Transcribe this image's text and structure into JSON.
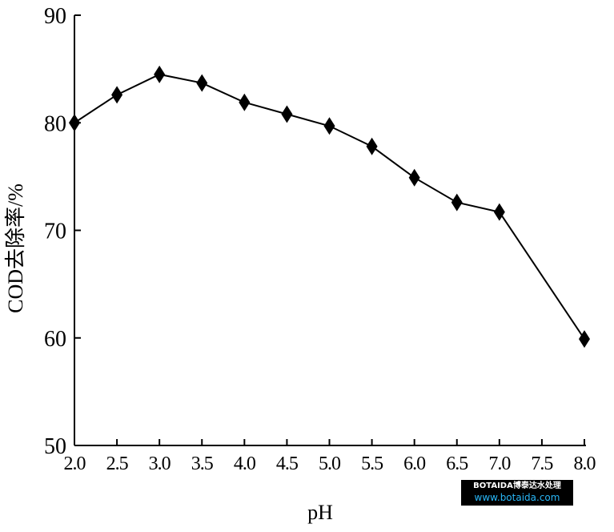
{
  "chart_data": {
    "type": "line",
    "title": "",
    "xlabel": "pH",
    "ylabel": "COD去除率/%",
    "xlim": [
      2.0,
      8.0
    ],
    "ylim": [
      50,
      90
    ],
    "x_ticks": [
      "2.0",
      "2.5",
      "3.0",
      "3.5",
      "4.0",
      "4.5",
      "5.0",
      "5.5",
      "6.0",
      "6.5",
      "7.0",
      "7.5",
      "8.0"
    ],
    "y_ticks": [
      "50",
      "60",
      "70",
      "80",
      "90"
    ],
    "grid": false,
    "marker": "diamond",
    "series": [
      {
        "x": [
          2.0,
          2.5,
          3.0,
          3.5,
          4.0,
          4.5,
          5.0,
          5.5,
          6.0,
          6.5,
          7.0,
          8.0
        ],
        "y": [
          80.0,
          82.6,
          84.5,
          83.7,
          81.9,
          80.8,
          79.7,
          77.8,
          74.9,
          72.6,
          71.7,
          59.9
        ]
      }
    ]
  },
  "watermark": {
    "line1": "BOTAIDA博泰达水处理",
    "line2": "www.botaida.com"
  }
}
